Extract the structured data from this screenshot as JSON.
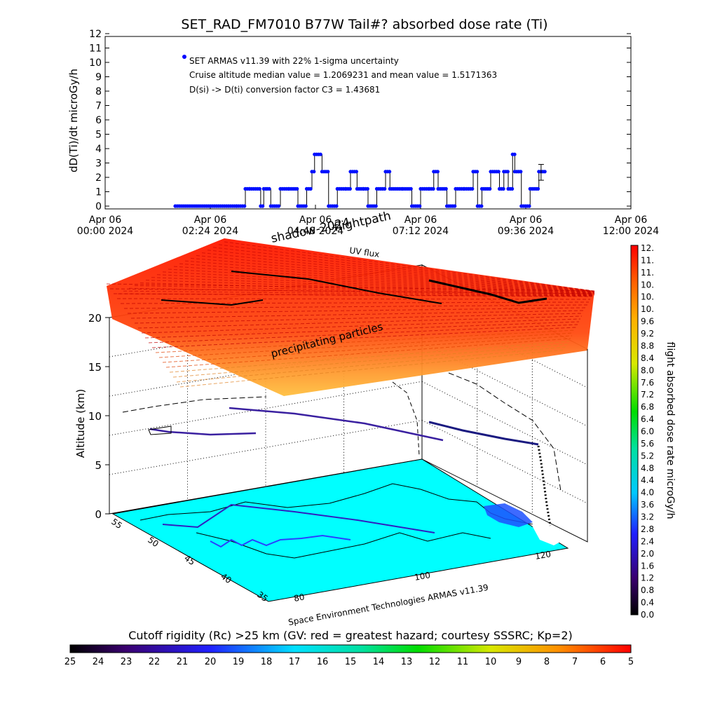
{
  "chart_data": [
    {
      "type": "scatter",
      "title": "SET_RAD_FM7010  B77W Tail#? absorbed dose rate (Ti)",
      "ylabel": "dD(Ti)/dt microGy/h",
      "ylim": [
        0,
        12
      ],
      "yticks": [
        "0",
        "1",
        "2",
        "3",
        "4",
        "5",
        "6",
        "7",
        "8",
        "9",
        "10",
        "11",
        "12"
      ],
      "xticks": [
        {
          "line1": "Apr 06",
          "line2": "00:00 2024"
        },
        {
          "line1": "Apr 06",
          "line2": "02:24 2024"
        },
        {
          "line1": "Apr 06",
          "line2": "04:48 2024"
        },
        {
          "line1": "Apr 06",
          "line2": "07:12 2024"
        },
        {
          "line1": "Apr 06",
          "line2": "09:36 2024"
        },
        {
          "line1": "Apr 06",
          "line2": "12:00 2024"
        }
      ],
      "legend": {
        "series_name": "SET ARMAS v11.39 with 22% 1-sigma uncertainty",
        "note1": "Cruise altitude median value = 1.2069231 and mean value = 1.5171363",
        "note2": "D(si) -> D(ti) conversion factor C3 = 1.43681"
      },
      "series": [
        {
          "x_hours": [
            1.6,
            3.0,
            3.2,
            3.3,
            3.55,
            3.62,
            3.7,
            3.78,
            4.0,
            4.2,
            4.4,
            4.6,
            4.72,
            4.78,
            4.95,
            5.1,
            5.3,
            5.5,
            5.6,
            5.75,
            5.9,
            6.0,
            6.2,
            6.4,
            6.5,
            6.8,
            7.0,
            7.2,
            7.4,
            7.5,
            7.6,
            7.8,
            8.0,
            8.2,
            8.4,
            8.5,
            8.6,
            8.8,
            9.0,
            9.1,
            9.2,
            9.3,
            9.35,
            9.5,
            9.7,
            9.9
          ],
          "values": [
            0,
            0,
            1.2,
            1.2,
            0,
            1.2,
            1.2,
            0,
            1.2,
            1.2,
            0,
            1.2,
            2.4,
            3.6,
            2.4,
            0,
            1.2,
            1.2,
            2.4,
            1.2,
            1.2,
            0,
            1.2,
            2.4,
            1.2,
            1.2,
            0,
            1.2,
            1.2,
            2.4,
            1.2,
            0,
            1.2,
            1.2,
            2.4,
            0,
            1.2,
            2.4,
            1.2,
            2.4,
            1.2,
            3.6,
            2.4,
            0,
            1.2,
            2.4
          ]
        }
      ]
    },
    {
      "type": "heatmap",
      "labels": {
        "shadow": "shadow-2024",
        "flightpath": "flightpath",
        "uv": "UV flux",
        "precip": "precipitating particles",
        "zlabel": "Altitude (km)",
        "credit": "Space Environment Technologies ARMAS v11.39"
      },
      "zticks": [
        "0",
        "5",
        "10",
        "15",
        "20"
      ],
      "lat_ticks": [
        "55",
        "50",
        "45",
        "40",
        "35"
      ],
      "lon_ticks": [
        "80",
        "100",
        "120"
      ]
    },
    {
      "type": "colorbar",
      "label": "flight absorbed dose rate microGy/h",
      "ticks": [
        "12.",
        "11.",
        "11.",
        "10.",
        "10.",
        "10.",
        "9.6",
        "9.2",
        "8.8",
        "8.4",
        "8.0",
        "7.6",
        "7.2",
        "6.8",
        "6.4",
        "6.0",
        "5.6",
        "5.2",
        "4.8",
        "4.4",
        "4.0",
        "3.6",
        "3.2",
        "2.8",
        "2.4",
        "2.0",
        "1.6",
        "1.2",
        "0.8",
        "0.4",
        "0.0"
      ]
    },
    {
      "type": "colorbar",
      "label": "Cutoff rigidity (Rc) >25 km (GV: red = greatest hazard; courtesy SSSRC; Kp=2)",
      "ticks": [
        "25",
        "24",
        "23",
        "22",
        "21",
        "20",
        "19",
        "18",
        "17",
        "16",
        "15",
        "14",
        "13",
        "12",
        "11",
        "10",
        "9",
        "8",
        "7",
        "6",
        "5"
      ]
    }
  ]
}
